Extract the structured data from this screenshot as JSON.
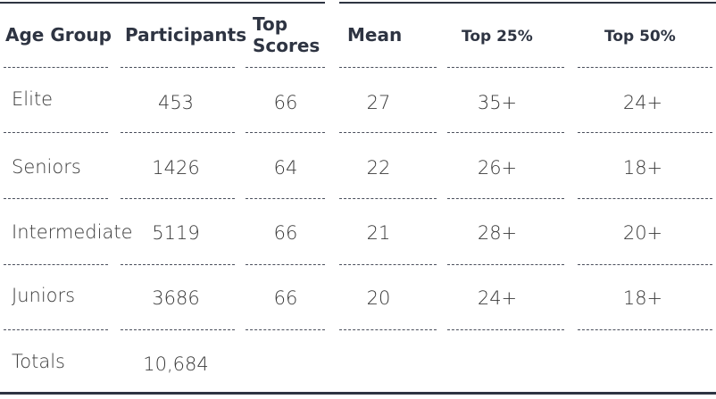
{
  "table": {
    "headers": {
      "age_group": "Age Group",
      "participants": "Participants",
      "top_scores_line1": "Top",
      "top_scores_line2": "Scores",
      "mean": "Mean",
      "top25": "Top 25%",
      "top50": "Top 50%"
    },
    "rows": [
      {
        "age_group": "Elite",
        "participants": "453",
        "top_scores": "66",
        "mean": "27",
        "top25": "35+",
        "top50": "24+"
      },
      {
        "age_group": "Seniors",
        "participants": "1426",
        "top_scores": "64",
        "mean": "22",
        "top25": "26+",
        "top50": "18+"
      },
      {
        "age_group": "Intermediate",
        "participants": "5119",
        "top_scores": "66",
        "mean": "21",
        "top25": "28+",
        "top50": "20+"
      },
      {
        "age_group": "Juniors",
        "participants": "3686",
        "top_scores": "66",
        "mean": "20",
        "top25": "24+",
        "top50": "18+"
      }
    ],
    "totals": {
      "label": "Totals",
      "participants": "10,684"
    }
  }
}
